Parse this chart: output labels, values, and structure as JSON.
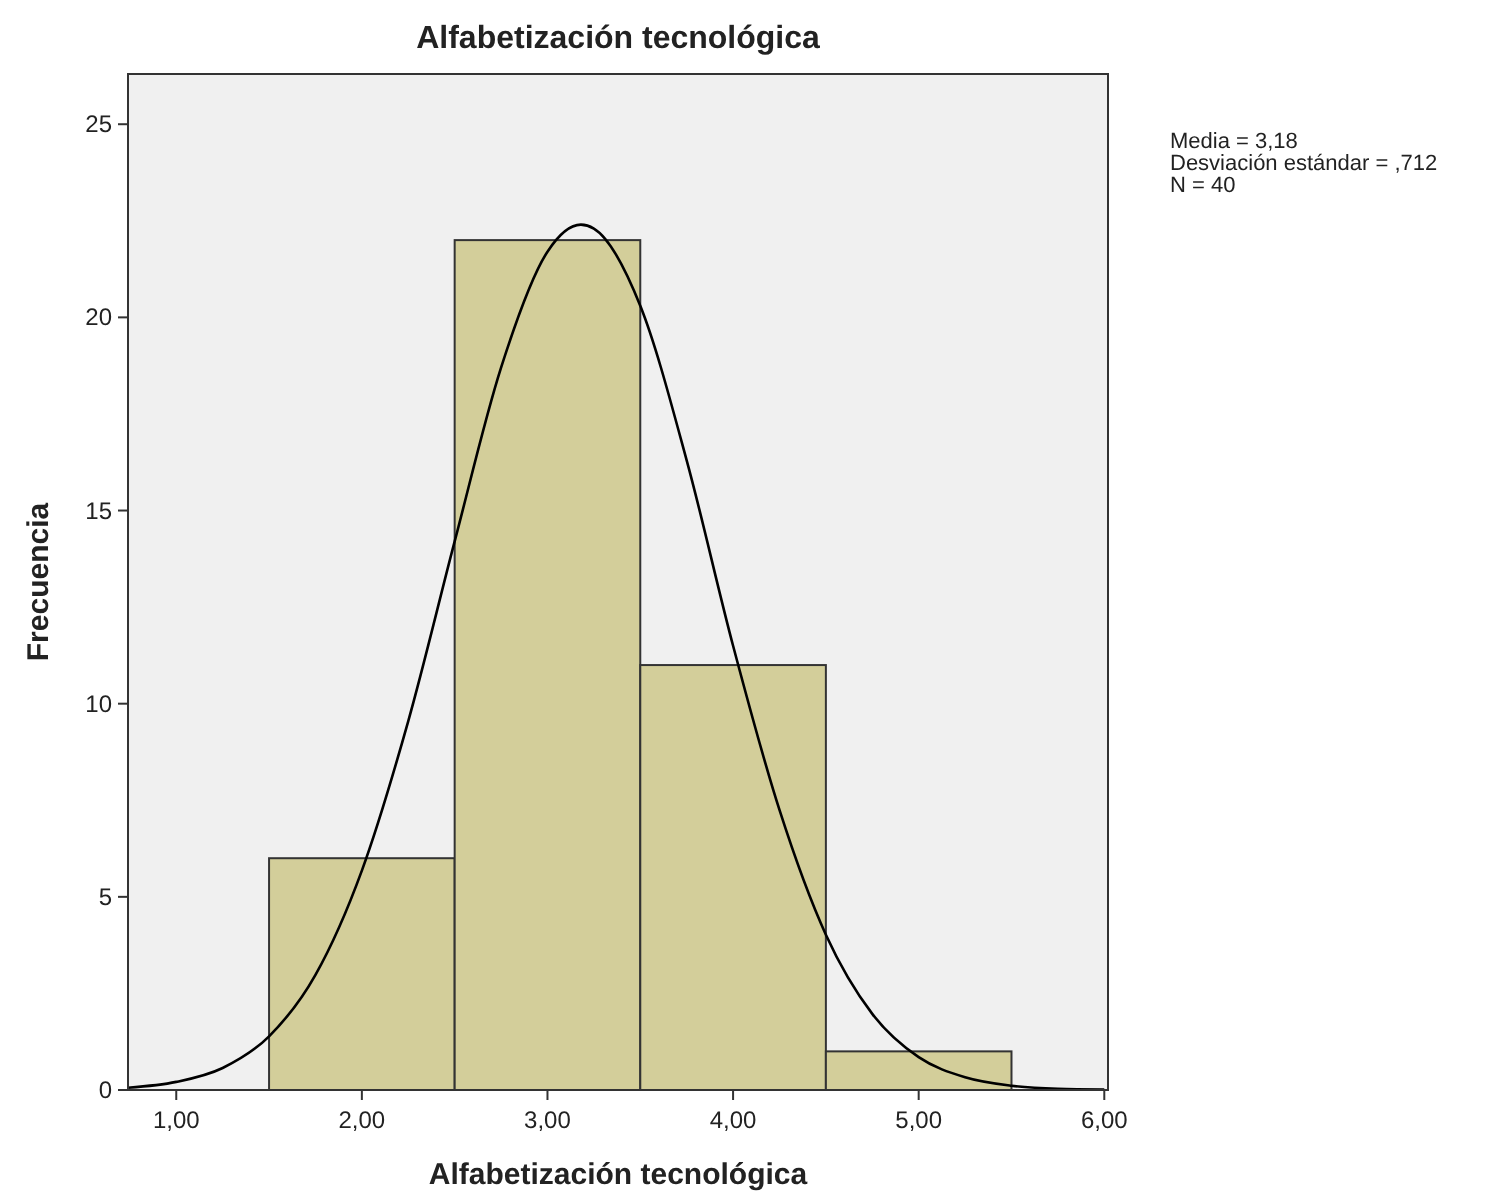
{
  "chart_data": {
    "type": "histogram",
    "title": "Alfabetización tecnológica",
    "xlabel": "Alfabetización tecnológica",
    "ylabel": "Frecuencia",
    "bins": [
      1.5,
      2.5,
      3.5,
      4.5,
      5.5
    ],
    "values": [
      6,
      22,
      11,
      1
    ],
    "color": "#d3ce9a",
    "series": [
      {
        "type": "line",
        "color": "#000000",
        "x": [
          0.74,
          1,
          1.25,
          1.5,
          1.75,
          2,
          2.25,
          2.5,
          2.75,
          3,
          3.18,
          3.25,
          3.5,
          3.75,
          4,
          4.25,
          4.5,
          4.75,
          5,
          5.25,
          5.5,
          5.75,
          6
        ],
        "values": [
          0.06,
          0.21,
          0.57,
          1.39,
          2.98,
          5.68,
          9.55,
          14.2,
          18.7,
          21.7,
          22.4,
          22.3,
          20.3,
          16.3,
          11.5,
          7.25,
          4.02,
          1.97,
          0.85,
          0.33,
          0.11,
          0.03,
          0.01
        ]
      }
    ],
    "xlim": [
      0.74,
      6.02
    ],
    "ylim": [
      0,
      26.3
    ],
    "xticks": [
      {
        "value": 1,
        "label": "1,00"
      },
      {
        "value": 2,
        "label": "2,00"
      },
      {
        "value": 3,
        "label": "3,00"
      },
      {
        "value": 4,
        "label": "4,00"
      },
      {
        "value": 5,
        "label": "5,00"
      },
      {
        "value": 6,
        "label": "6,00"
      }
    ],
    "yticks": [
      0,
      5,
      10,
      15,
      20,
      25
    ],
    "grid": false,
    "annotations": [
      "Media = 3,18",
      "Desviación estándar = ,712",
      "N = 40"
    ]
  }
}
